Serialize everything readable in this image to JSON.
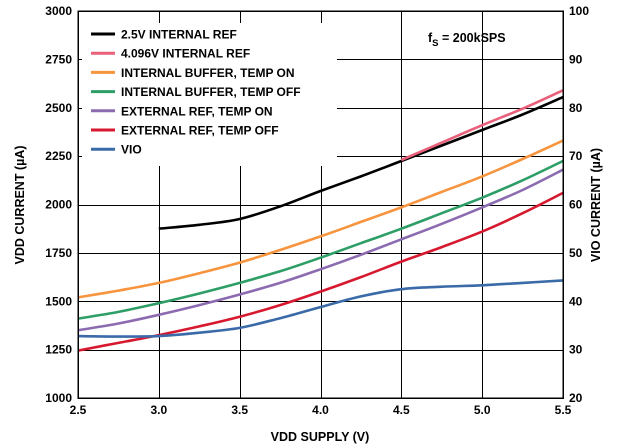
{
  "chart_data": {
    "type": "line",
    "xlabel": "VDD SUPPLY (V)",
    "ylabel": "VDD CURRENT (µA)",
    "y2label": "VIO CURRENT (µA)",
    "xlim": [
      2.5,
      5.5
    ],
    "ylim": [
      1000,
      3000
    ],
    "y2lim": [
      20,
      100
    ],
    "xticks": [
      2.5,
      3.0,
      3.5,
      4.0,
      4.5,
      5.0,
      5.5
    ],
    "xtick_labels": [
      "2.5",
      "3.0",
      "3.5",
      "4.0",
      "4.5",
      "5.0",
      "5.5"
    ],
    "yticks": [
      1000,
      1250,
      1500,
      1750,
      2000,
      2250,
      2500,
      2750,
      3000
    ],
    "y2ticks": [
      20,
      30,
      40,
      50,
      60,
      70,
      80,
      90,
      100
    ],
    "grid": true,
    "legend_position": "top-left",
    "annotation": {
      "main": "f",
      "sub": "S",
      "rest": " = 200kSPS"
    },
    "series": [
      {
        "name": "2.5V INTERNAL REF",
        "color": "#000000",
        "axis": "left",
        "x": [
          3.0,
          3.25,
          3.5,
          3.75,
          4.0,
          4.25,
          4.5,
          4.75,
          5.0,
          5.25,
          5.5
        ],
        "y": [
          1875,
          1895,
          1925,
          1990,
          2070,
          2145,
          2225,
          2305,
          2385,
          2465,
          2555
        ]
      },
      {
        "name": "4.096V INTERNAL REF",
        "color": "#e8607a",
        "axis": "left",
        "x": [
          4.5,
          4.75,
          5.0,
          5.25,
          5.5
        ],
        "y": [
          2230,
          2320,
          2410,
          2495,
          2590
        ]
      },
      {
        "name": "INTERNAL BUFFER, TEMP ON",
        "color": "#f7943e",
        "axis": "left",
        "x": [
          2.5,
          2.75,
          3.0,
          3.25,
          3.5,
          3.75,
          4.0,
          4.25,
          4.5,
          4.75,
          5.0,
          5.25,
          5.5
        ],
        "y": [
          1520,
          1555,
          1595,
          1645,
          1700,
          1765,
          1835,
          1910,
          1985,
          2065,
          2145,
          2235,
          2330
        ]
      },
      {
        "name": "INTERNAL BUFFER, TEMP OFF",
        "color": "#2e9e67",
        "axis": "left",
        "x": [
          2.5,
          2.75,
          3.0,
          3.25,
          3.5,
          3.75,
          4.0,
          4.25,
          4.5,
          4.75,
          5.0,
          5.25,
          5.5
        ],
        "y": [
          1410,
          1445,
          1490,
          1540,
          1595,
          1655,
          1725,
          1800,
          1875,
          1955,
          2035,
          2125,
          2225
        ]
      },
      {
        "name": "EXTERNAL REF, TEMP ON",
        "color": "#8c6bb1",
        "axis": "left",
        "x": [
          2.5,
          2.75,
          3.0,
          3.25,
          3.5,
          3.75,
          4.0,
          4.25,
          4.5,
          4.75,
          5.0,
          5.25,
          5.5
        ],
        "y": [
          1350,
          1385,
          1430,
          1480,
          1535,
          1595,
          1665,
          1740,
          1820,
          1900,
          1985,
          2075,
          2180
        ]
      },
      {
        "name": "EXTERNAL REF, TEMP OFF",
        "color": "#d7192f",
        "axis": "left",
        "x": [
          2.5,
          2.75,
          3.0,
          3.25,
          3.5,
          3.75,
          4.0,
          4.25,
          4.5,
          4.75,
          5.0,
          5.25,
          5.5
        ],
        "y": [
          1245,
          1285,
          1325,
          1370,
          1420,
          1480,
          1550,
          1625,
          1705,
          1780,
          1860,
          1955,
          2060
        ]
      },
      {
        "name": "VIO",
        "color": "#3a6aa8",
        "axis": "right",
        "x": [
          2.5,
          2.75,
          3.0,
          3.25,
          3.5,
          3.75,
          4.0,
          4.25,
          4.5,
          4.75,
          5.0,
          5.25,
          5.5
        ],
        "y": [
          32.8,
          32.7,
          32.8,
          33.5,
          34.5,
          36.5,
          38.8,
          41.0,
          42.5,
          43.0,
          43.3,
          43.8,
          44.3
        ]
      }
    ]
  }
}
